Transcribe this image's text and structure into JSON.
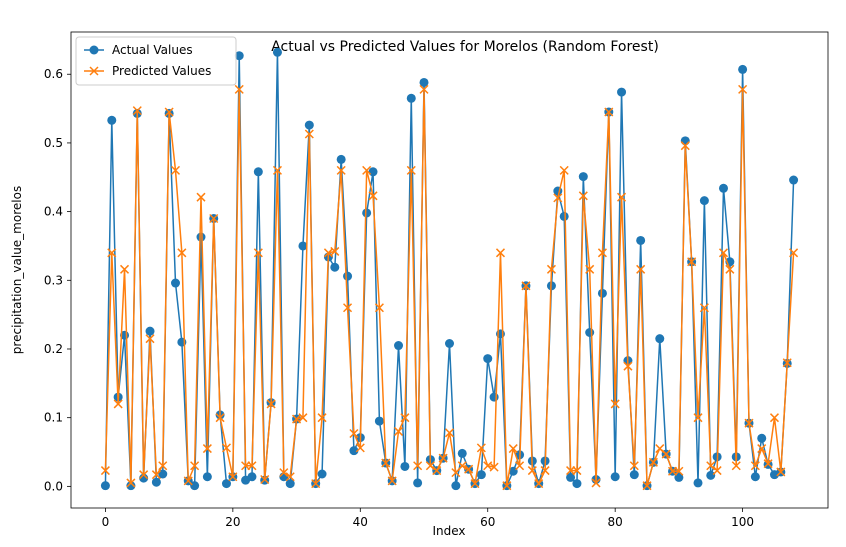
{
  "chart_data": {
    "type": "line",
    "title": "Actual vs Predicted Values for Morelos (Random Forest)",
    "xlabel": "Index",
    "ylabel": "precipitation_value_morelos",
    "xlim": [
      -5.4,
      113.4
    ],
    "ylim": [
      -0.0315,
      0.6615
    ],
    "xticks": [
      0,
      20,
      40,
      60,
      80,
      100
    ],
    "yticks": [
      0.0,
      0.1,
      0.2,
      0.3,
      0.4,
      0.5,
      0.6
    ],
    "ytick_labels": [
      "0.0",
      "0.1",
      "0.2",
      "0.3",
      "0.4",
      "0.5",
      "0.6"
    ],
    "grid": false,
    "legend_position": "upper-left",
    "series": [
      {
        "name": "Actual Values",
        "color": "#1f77b4",
        "marker": "circle",
        "x": [
          0,
          1,
          2,
          3,
          4,
          5,
          6,
          7,
          8,
          9,
          10,
          11,
          12,
          13,
          14,
          15,
          16,
          17,
          18,
          19,
          20,
          21,
          22,
          23,
          24,
          25,
          26,
          27,
          28,
          29,
          30,
          31,
          32,
          33,
          34,
          35,
          36,
          37,
          38,
          39,
          40,
          41,
          42,
          43,
          44,
          45,
          46,
          47,
          48,
          49,
          50,
          51,
          52,
          53,
          54,
          55,
          56,
          57,
          58,
          59,
          60,
          61,
          62,
          63,
          64,
          65,
          66,
          67,
          68,
          69,
          70,
          71,
          72,
          73,
          74,
          75,
          76,
          77,
          78,
          79,
          80,
          81,
          82,
          83,
          84,
          85,
          86,
          87,
          88,
          89,
          90,
          91,
          92,
          93,
          94,
          95,
          96,
          97,
          98,
          99,
          100,
          101,
          102,
          103,
          104,
          105,
          106,
          107,
          108
        ],
        "values": [
          0.001,
          0.533,
          0.13,
          0.22,
          0.001,
          0.543,
          0.012,
          0.226,
          0.006,
          0.018,
          0.543,
          0.296,
          0.21,
          0.008,
          0.001,
          0.363,
          0.014,
          0.39,
          0.104,
          0.004,
          0.014,
          0.627,
          0.009,
          0.014,
          0.458,
          0.009,
          0.122,
          0.632,
          0.014,
          0.004,
          0.098,
          0.35,
          0.526,
          0.004,
          0.018,
          0.334,
          0.319,
          0.476,
          0.306,
          0.052,
          0.071,
          0.398,
          0.458,
          0.095,
          0.034,
          0.008,
          0.205,
          0.029,
          0.565,
          0.005,
          0.588,
          0.039,
          0.023,
          0.041,
          0.208,
          0.001,
          0.048,
          0.025,
          0.004,
          0.017,
          0.186,
          0.13,
          0.222,
          0.001,
          0.022,
          0.046,
          0.292,
          0.037,
          0.004,
          0.037,
          0.292,
          0.43,
          0.393,
          0.013,
          0.004,
          0.451,
          0.224,
          0.01,
          0.281,
          0.545,
          0.014,
          0.574,
          0.183,
          0.017,
          0.358,
          0.001,
          0.035,
          0.215,
          0.047,
          0.022,
          0.013,
          0.503,
          0.327,
          0.005,
          0.416,
          0.016,
          0.043,
          0.434,
          0.327,
          0.043,
          0.607,
          0.092,
          0.014,
          0.07,
          0.032,
          0.017,
          0.021,
          0.179,
          0.446
        ]
      },
      {
        "name": "Predicted Values",
        "color": "#ff7f0e",
        "marker": "x",
        "x": [
          0,
          1,
          2,
          3,
          4,
          5,
          6,
          7,
          8,
          9,
          10,
          11,
          12,
          13,
          14,
          15,
          16,
          17,
          18,
          19,
          20,
          21,
          22,
          23,
          24,
          25,
          26,
          27,
          28,
          29,
          30,
          31,
          32,
          33,
          34,
          35,
          36,
          37,
          38,
          39,
          40,
          41,
          42,
          43,
          44,
          45,
          46,
          47,
          48,
          49,
          50,
          51,
          52,
          53,
          54,
          55,
          56,
          57,
          58,
          59,
          60,
          61,
          62,
          63,
          64,
          65,
          66,
          67,
          68,
          69,
          70,
          71,
          72,
          73,
          74,
          75,
          76,
          77,
          78,
          79,
          80,
          81,
          82,
          83,
          84,
          85,
          86,
          87,
          88,
          89,
          90,
          91,
          92,
          93,
          94,
          95,
          96,
          97,
          98,
          99,
          100,
          101,
          102,
          103,
          104,
          105,
          106,
          107,
          108
        ],
        "values": [
          0.023,
          0.34,
          0.12,
          0.316,
          0.005,
          0.547,
          0.017,
          0.215,
          0.017,
          0.03,
          0.545,
          0.46,
          0.34,
          0.008,
          0.03,
          0.421,
          0.055,
          0.39,
          0.1,
          0.056,
          0.014,
          0.578,
          0.03,
          0.03,
          0.34,
          0.01,
          0.12,
          0.46,
          0.02,
          0.014,
          0.098,
          0.1,
          0.513,
          0.004,
          0.1,
          0.34,
          0.342,
          0.46,
          0.26,
          0.077,
          0.056,
          0.46,
          0.423,
          0.26,
          0.034,
          0.008,
          0.08,
          0.1,
          0.46,
          0.03,
          0.578,
          0.03,
          0.023,
          0.041,
          0.078,
          0.02,
          0.03,
          0.025,
          0.004,
          0.056,
          0.03,
          0.028,
          0.34,
          0.001,
          0.055,
          0.03,
          0.292,
          0.023,
          0.004,
          0.023,
          0.316,
          0.42,
          0.46,
          0.023,
          0.023,
          0.423,
          0.316,
          0.005,
          0.34,
          0.545,
          0.12,
          0.421,
          0.175,
          0.03,
          0.316,
          0.001,
          0.035,
          0.055,
          0.047,
          0.022,
          0.022,
          0.496,
          0.327,
          0.1,
          0.26,
          0.03,
          0.023,
          0.34,
          0.316,
          0.03,
          0.578,
          0.092,
          0.03,
          0.055,
          0.033,
          0.1,
          0.021,
          0.18,
          0.34
        ]
      }
    ]
  }
}
